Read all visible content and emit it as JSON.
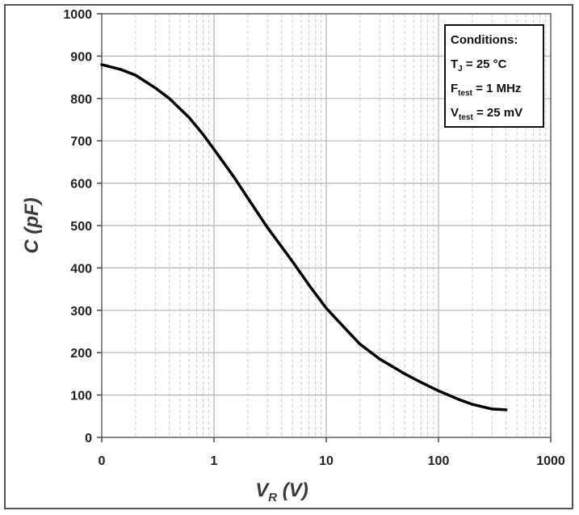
{
  "chart_data": {
    "type": "line",
    "title": "",
    "xlabel": {
      "main": "V",
      "sub": "R",
      "unit": " (V)"
    },
    "ylabel": "C (pF)",
    "xscale": "log",
    "xlim": [
      0.1,
      1000
    ],
    "ylim": [
      0,
      1000
    ],
    "xticks": [
      {
        "value": 0.1,
        "label": "0"
      },
      {
        "value": 1,
        "label": "1"
      },
      {
        "value": 10,
        "label": "10"
      },
      {
        "value": 100,
        "label": "100"
      },
      {
        "value": 1000,
        "label": "1000"
      }
    ],
    "yticks": [
      {
        "value": 0,
        "label": "0"
      },
      {
        "value": 100,
        "label": "100"
      },
      {
        "value": 200,
        "label": "200"
      },
      {
        "value": 300,
        "label": "300"
      },
      {
        "value": 400,
        "label": "400"
      },
      {
        "value": 500,
        "label": "500"
      },
      {
        "value": 600,
        "label": "600"
      },
      {
        "value": 700,
        "label": "700"
      },
      {
        "value": 800,
        "label": "800"
      },
      {
        "value": 900,
        "label": "900"
      },
      {
        "value": 1000,
        "label": "1000"
      }
    ],
    "grid": true,
    "series": [
      {
        "color": "#000000",
        "x": [
          0.1,
          0.15,
          0.2,
          0.3,
          0.4,
          0.6,
          0.8,
          1,
          1.5,
          2,
          3,
          5,
          7,
          10,
          15,
          20,
          30,
          50,
          70,
          100,
          150,
          200,
          300,
          400
        ],
        "y": [
          880,
          868,
          855,
          825,
          800,
          755,
          715,
          680,
          615,
          565,
          495,
          415,
          360,
          305,
          255,
          220,
          185,
          150,
          130,
          110,
          90,
          78,
          67,
          65
        ]
      }
    ],
    "conditions": {
      "title": "Conditions:",
      "lines": [
        {
          "main": "T",
          "sub": "J",
          "rest": " = 25 °C"
        },
        {
          "main": "F",
          "sub": "test",
          "rest": " = 1 MHz"
        },
        {
          "main": "V",
          "sub": "test",
          "rest": " = 25 mV"
        }
      ]
    }
  }
}
